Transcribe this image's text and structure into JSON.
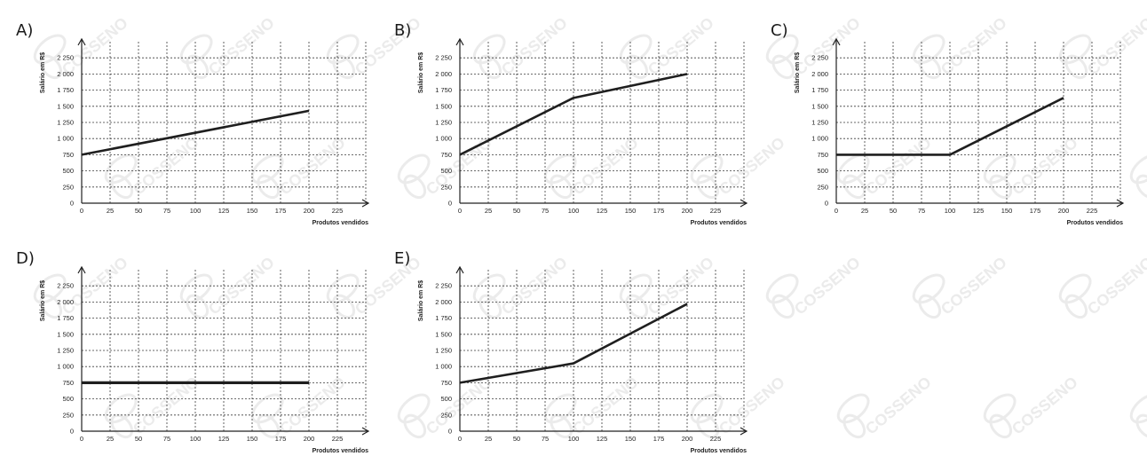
{
  "chart_data": [
    {
      "type": "line",
      "panel_label": "A)",
      "xlabel": "Produtos vendidos",
      "ylabel": "Salário em R$",
      "x_ticks": [
        "0",
        "25",
        "50",
        "75",
        "100",
        "125",
        "150",
        "175",
        "200",
        "225"
      ],
      "y_ticks": [
        "0",
        "250",
        "500",
        "750",
        "1 000",
        "1 250",
        "1 500",
        "1 750",
        "2 000",
        "2 250"
      ],
      "xlim": [
        0,
        250
      ],
      "ylim": [
        0,
        2500
      ],
      "grid": true,
      "series": [
        {
          "points": [
            [
              0,
              750
            ],
            [
              200,
              1430
            ]
          ]
        }
      ]
    },
    {
      "type": "line",
      "panel_label": "B)",
      "xlabel": "Produtos vendidos",
      "ylabel": "Salário em R$",
      "x_ticks": [
        "0",
        "25",
        "50",
        "75",
        "100",
        "125",
        "150",
        "175",
        "200",
        "225"
      ],
      "y_ticks": [
        "0",
        "250",
        "500",
        "750",
        "1 000",
        "1 250",
        "1 500",
        "1 750",
        "2 000",
        "2 250"
      ],
      "xlim": [
        0,
        250
      ],
      "ylim": [
        0,
        2500
      ],
      "grid": true,
      "series": [
        {
          "points": [
            [
              0,
              750
            ],
            [
              100,
              1630
            ],
            [
              200,
              2000
            ]
          ]
        }
      ]
    },
    {
      "type": "line",
      "panel_label": "C)",
      "xlabel": "Produtos vendidos",
      "ylabel": "Salário em R$",
      "x_ticks": [
        "0",
        "25",
        "50",
        "75",
        "100",
        "125",
        "150",
        "175",
        "200",
        "225"
      ],
      "y_ticks": [
        "0",
        "250",
        "500",
        "750",
        "1 000",
        "1 250",
        "1 500",
        "1 750",
        "2 000",
        "2 250"
      ],
      "xlim": [
        0,
        250
      ],
      "ylim": [
        0,
        2500
      ],
      "grid": true,
      "series": [
        {
          "points": [
            [
              0,
              750
            ],
            [
              100,
              750
            ],
            [
              200,
              1630
            ]
          ]
        }
      ]
    },
    {
      "type": "line",
      "panel_label": "D)",
      "xlabel": "Produtos vendidos",
      "ylabel": "Salário em R$",
      "x_ticks": [
        "0",
        "25",
        "50",
        "75",
        "100",
        "125",
        "150",
        "175",
        "200",
        "225"
      ],
      "y_ticks": [
        "0",
        "250",
        "500",
        "750",
        "1 000",
        "1 250",
        "1 500",
        "1 750",
        "2 000",
        "2 250"
      ],
      "xlim": [
        0,
        250
      ],
      "ylim": [
        0,
        2500
      ],
      "grid": true,
      "series": [
        {
          "points": [
            [
              0,
              750
            ],
            [
              200,
              750
            ]
          ]
        }
      ]
    },
    {
      "type": "line",
      "panel_label": "E)",
      "xlabel": "Produtos vendidos",
      "ylabel": "Salário em R$",
      "x_ticks": [
        "0",
        "25",
        "50",
        "75",
        "100",
        "125",
        "150",
        "175",
        "200",
        "225"
      ],
      "y_ticks": [
        "0",
        "250",
        "500",
        "750",
        "1 000",
        "1 250",
        "1 500",
        "1 750",
        "2 000",
        "2 250"
      ],
      "xlim": [
        0,
        250
      ],
      "ylim": [
        0,
        2500
      ],
      "grid": true,
      "series": [
        {
          "points": [
            [
              0,
              750
            ],
            [
              100,
              1050
            ],
            [
              200,
              1970
            ]
          ]
        }
      ]
    }
  ],
  "watermark": {
    "text": "COSSENO"
  },
  "colors": {
    "line": "#1f1f1f",
    "grid": "#3a3a3a",
    "watermark": "#ebebeb"
  }
}
